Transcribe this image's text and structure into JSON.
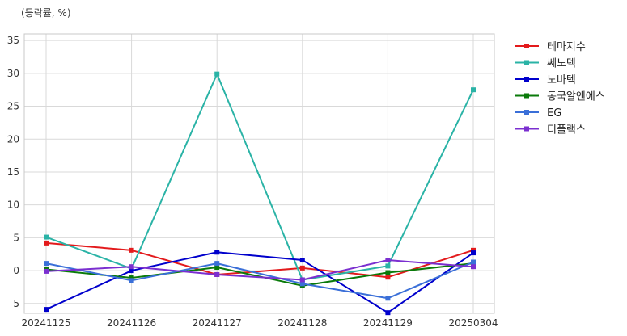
{
  "chart_data": {
    "type": "line",
    "unit_label": "(등락률, %)",
    "title": "",
    "xlabel": "",
    "ylabel": "",
    "categories": [
      "20241125",
      "20241126",
      "20241127",
      "20241128",
      "20241129",
      "20250304"
    ],
    "ylim": [
      -6.5,
      36
    ],
    "yticks": [
      -5,
      0,
      5,
      10,
      15,
      20,
      25,
      30,
      35
    ],
    "grid": true,
    "legend_position": "right-outside",
    "series": [
      {
        "name": "테마지수",
        "color": "#e31a1c",
        "values": [
          4.2,
          3.1,
          -0.6,
          0.4,
          -1.0,
          3.1
        ]
      },
      {
        "name": "쎄노텍",
        "color": "#2ab3a6",
        "values": [
          5.1,
          0.3,
          29.9,
          -1.4,
          0.7,
          27.5
        ]
      },
      {
        "name": "노바텍",
        "color": "#0000cc",
        "values": [
          -5.9,
          0.0,
          2.8,
          1.6,
          -6.4,
          2.7
        ]
      },
      {
        "name": "동국알앤에스",
        "color": "#0a7a0a",
        "values": [
          0.2,
          -1.1,
          0.5,
          -2.3,
          -0.3,
          1.1
        ]
      },
      {
        "name": "EG",
        "color": "#3a6fd8",
        "values": [
          1.1,
          -1.5,
          1.1,
          -2.0,
          -4.2,
          1.3
        ]
      },
      {
        "name": "티플랙스",
        "color": "#7b2fd0",
        "values": [
          -0.1,
          0.6,
          -0.6,
          -1.4,
          1.6,
          0.6
        ]
      }
    ]
  }
}
